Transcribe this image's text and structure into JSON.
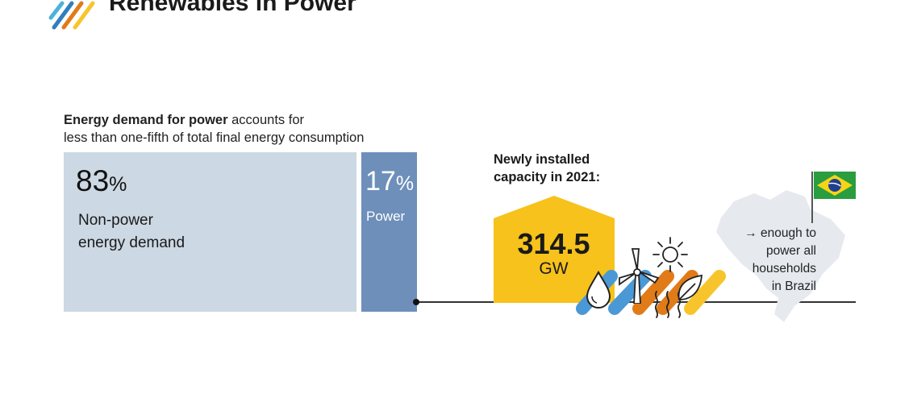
{
  "header": {
    "title": "Renewables in Power"
  },
  "intro": {
    "bold": "Energy demand for power",
    "rest_line1": " accounts for",
    "line2": "less than one-fifth of total final energy consumption"
  },
  "shares": {
    "non_power": {
      "value": "83",
      "unit": "%",
      "label_line1": "Non-power",
      "label_line2": "energy demand"
    },
    "power": {
      "value": "17",
      "unit": "%",
      "label": "Power"
    }
  },
  "capacity": {
    "title_line1": "Newly installed",
    "title_line2": "capacity in 2021:",
    "value": "314.5",
    "unit": "GW"
  },
  "comparison": {
    "line1": "→ enough to",
    "line2": "power all",
    "line3": "households",
    "line4": "in Brazil"
  },
  "icons": [
    "logo-stripes-icon",
    "water-drop-icon",
    "wind-turbine-icon",
    "sun-icon",
    "geothermal-icon",
    "leaf-icon",
    "brazil-flag-icon",
    "brazil-map-icon"
  ],
  "colors": {
    "non_power_bar": "#ccd8e3",
    "power_bar": "#6d8fba",
    "capacity_house": "#f6c21b",
    "stripe_blue": "#4a98d6",
    "stripe_orange": "#e07b18",
    "stripe_yellow": "#f7c52b"
  }
}
